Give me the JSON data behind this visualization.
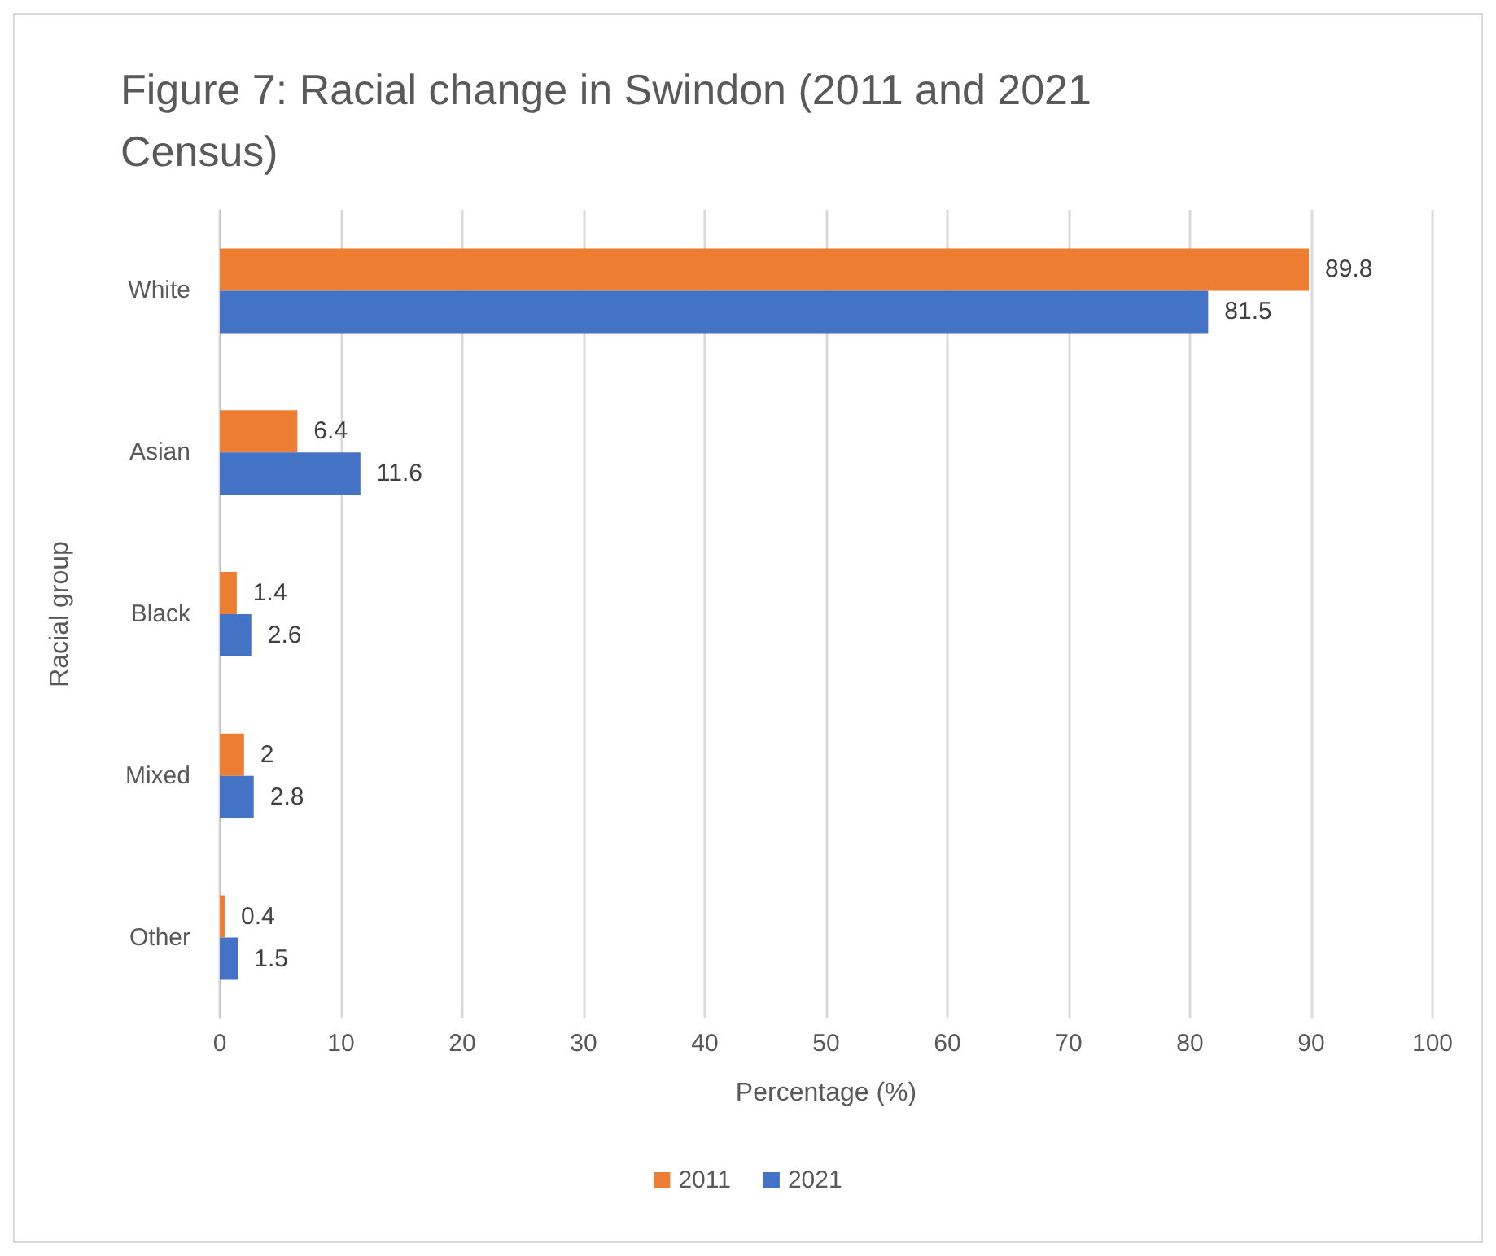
{
  "chart_data": {
    "type": "bar",
    "orientation": "horizontal",
    "title": "Figure 7: Racial change in Swindon (2011 and 2021 Census)",
    "xlabel": "Percentage (%)",
    "ylabel": "Racial group",
    "categories": [
      "White",
      "Asian",
      "Black",
      "Mixed",
      "Other"
    ],
    "series": [
      {
        "name": "2011",
        "color": "#ed7d31",
        "values": [
          89.8,
          6.4,
          1.4,
          2,
          0.4
        ]
      },
      {
        "name": "2021",
        "color": "#4472c4",
        "values": [
          81.5,
          11.6,
          2.6,
          2.8,
          1.5
        ]
      }
    ],
    "xlim": [
      0,
      100
    ],
    "xticks": [
      0,
      10,
      20,
      30,
      40,
      50,
      60,
      70,
      80,
      90,
      100
    ],
    "grid": "x",
    "legend": "bottom",
    "data_labels": true
  }
}
